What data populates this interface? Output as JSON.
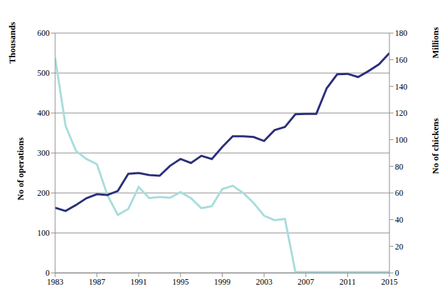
{
  "chart_data": {
    "type": "line",
    "x": [
      1983,
      1984,
      1985,
      1986,
      1987,
      1988,
      1989,
      1990,
      1991,
      1992,
      1993,
      1994,
      1995,
      1996,
      1997,
      1998,
      1999,
      2000,
      2001,
      2002,
      2003,
      2004,
      2005,
      2006,
      2007,
      2008,
      2009,
      2010,
      2011,
      2012,
      2013,
      2014,
      2015
    ],
    "series": [
      {
        "color": "#a9dcdc",
        "axis": "y",
        "values": [
          538,
          368,
          305,
          285,
          272,
          195,
          145,
          160,
          215,
          187,
          190,
          188,
          202,
          187,
          162,
          167,
          210,
          218,
          200,
          175,
          143,
          132,
          135,
          2,
          2,
          2,
          2,
          2,
          2,
          2,
          2,
          2,
          2
        ]
      },
      {
        "color": "#2b2f7a",
        "axis": "y2",
        "values": [
          48.9,
          46.5,
          51,
          56.1,
          59.1,
          58.5,
          61.5,
          74.4,
          75,
          73.5,
          72.9,
          80.4,
          85.5,
          82.5,
          87.9,
          85.5,
          94.5,
          102.6,
          102.6,
          102,
          99,
          107.1,
          109.5,
          119.1,
          119.4,
          119.4,
          138.6,
          149.1,
          149.4,
          147,
          151.5,
          156.6,
          165
        ]
      }
    ],
    "xlim": [
      1983,
      2015
    ],
    "xticks": [
      1983,
      1987,
      1991,
      1995,
      1999,
      2003,
      2007,
      2011,
      2015
    ],
    "ylim": [
      0,
      600
    ],
    "yticks": [
      0,
      100,
      200,
      300,
      400,
      500,
      600
    ],
    "y2lim": [
      0,
      180
    ],
    "y2ticks": [
      0,
      20,
      40,
      60,
      80,
      100,
      120,
      140,
      160,
      180
    ],
    "ylabel": "No of operations",
    "ylabel_units": "Thousands",
    "y2label": "No of chickens",
    "y2label_units": "Millions",
    "grid": true
  }
}
